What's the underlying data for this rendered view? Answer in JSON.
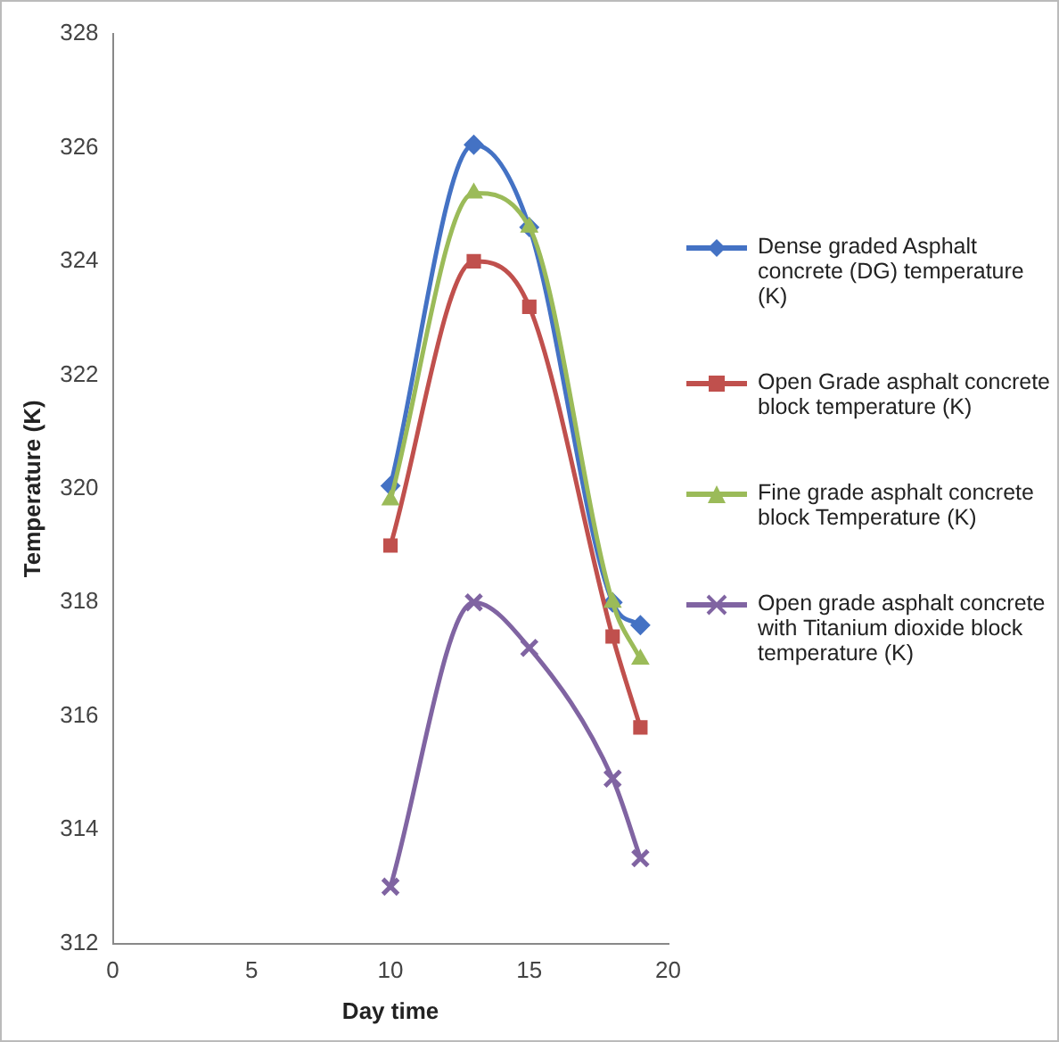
{
  "chart_data": {
    "type": "line",
    "xlabel": "Day time",
    "ylabel": "Temperature (K)",
    "x": [
      10,
      13,
      15,
      18,
      19
    ],
    "series": [
      {
        "name": "Dense graded Asphalt concrete (DG)   temperature (K)",
        "color": "#4472c4",
        "marker": "diamond",
        "values": [
          320.05,
          326.05,
          324.6,
          318,
          317.6
        ]
      },
      {
        "name": "Open Grade asphalt concrete block temperature (K)",
        "color": "#c0504d",
        "marker": "square",
        "values": [
          319,
          324,
          323.2,
          317.4,
          315.8
        ]
      },
      {
        "name": "Fine grade asphalt concrete block Temperature (K)",
        "color": "#9bbb59",
        "marker": "triangle",
        "values": [
          319.8,
          325.2,
          324.6,
          318,
          317
        ]
      },
      {
        "name": "Open grade asphalt concrete with Titanium dioxide block temperature (K)",
        "color": "#8064a2",
        "marker": "cross",
        "values": [
          313,
          318,
          317.2,
          314.9,
          313.5
        ]
      }
    ],
    "xlim": [
      0,
      20
    ],
    "xticks": [
      0,
      5,
      10,
      15,
      20
    ],
    "ylim": [
      312,
      328
    ],
    "yticks": [
      312,
      314,
      316,
      318,
      320,
      322,
      324,
      326,
      328
    ],
    "grid": false,
    "legend": "right"
  }
}
